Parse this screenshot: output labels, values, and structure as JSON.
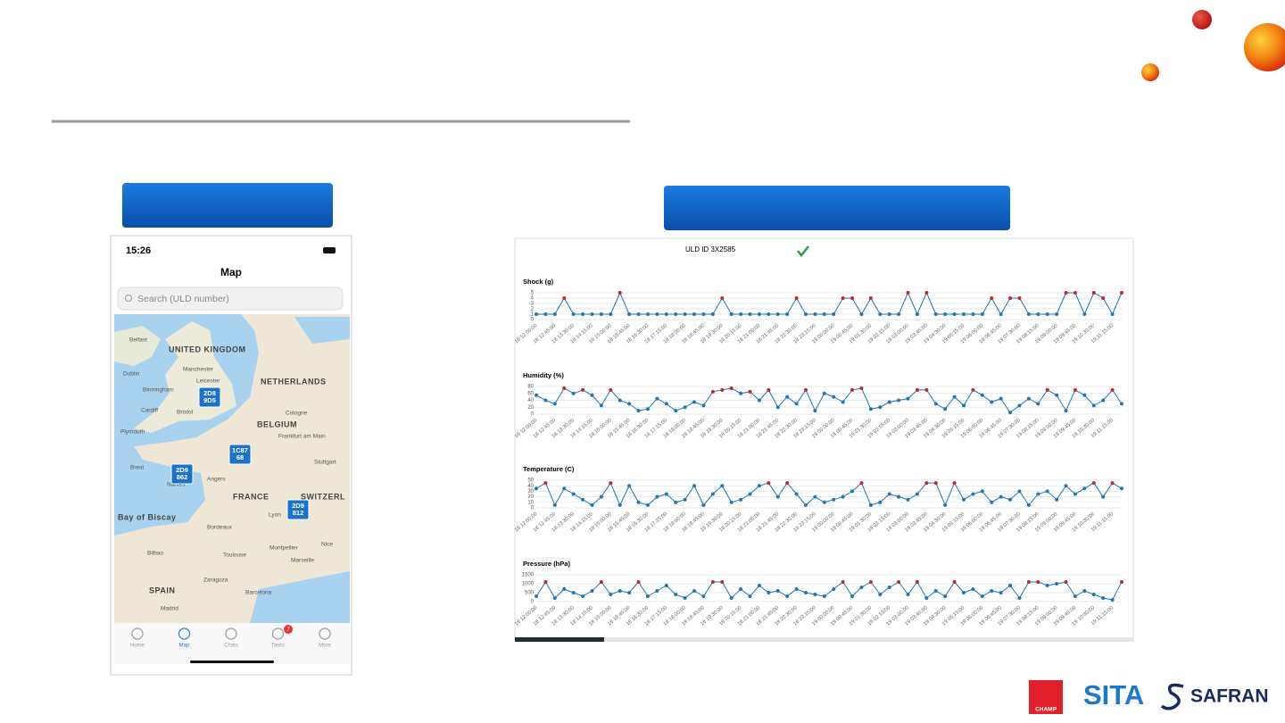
{
  "slide_logos": {
    "champ": "CHAMP",
    "sita": "SITA",
    "safran": "SAFRAN"
  },
  "phone": {
    "time": "15:26",
    "title": "Map",
    "search": "Search (ULD number)",
    "map_labels": [
      "Belfast",
      "UNITED KINGDOM",
      "Dublin",
      "Manchester",
      "Birmingham",
      "Leicester",
      "Cardiff",
      "Bristol",
      "Plymouth",
      "NETHERLANDS",
      "BELGIUM",
      "Cologne",
      "Frankfurt am Main",
      "Stuttgart",
      "FRANCE",
      "Angers",
      "Nantes",
      "Brest",
      "Lyon",
      "Bordeaux",
      "Bay of Biscay",
      "SWITZERL",
      "Montpellier",
      "Toulouse",
      "Marseille",
      "Nice",
      "Bilbao",
      "Zaragoza",
      "Barcelona",
      "SPAIN",
      "Madrid"
    ],
    "markers": [
      [
        "2D8",
        "9D5"
      ],
      [
        "1C87",
        "68"
      ],
      [
        "2D9",
        "862"
      ],
      [
        "2D9",
        "812"
      ]
    ],
    "tabs": [
      "Home",
      "Map",
      "Chats",
      "Tasks",
      "More"
    ],
    "badge": "7"
  },
  "panel_title": "ULD ID 3X2585",
  "chart_data": [
    {
      "type": "line",
      "title": "Shock (g)",
      "categories": [
        "18 12:00:00",
        null,
        "18 12:45:00",
        null,
        "18 13:30:00",
        null,
        "18 14:15:00",
        null,
        "18 15:00:00",
        null,
        "18 15:45:00",
        null,
        "18 16:30:00",
        null,
        "18 17:15:00",
        null,
        "18 18:00:00",
        null,
        "18 18:45:00",
        null,
        "18 19:30:00",
        null,
        "18 20:15:00",
        null,
        "18 21:00:00",
        null,
        "18 21:45:00",
        null,
        "18 22:30:00",
        null,
        "18 23:15:00",
        null,
        "19 00:00:00",
        null,
        "19 00:45:00",
        null,
        "19 01:30:00",
        null,
        "19 02:15:00",
        null,
        "19 03:00:00",
        null,
        "19 03:45:00",
        null,
        "19 04:30:00",
        null,
        "19 05:15:00",
        null,
        "19 06:00:00",
        null,
        "19 06:45:00",
        null,
        "19 07:30:00",
        null,
        "19 08:15:00",
        null,
        "19 09:00:00",
        null,
        "19 09:45:00",
        null,
        "19 10:30:00",
        null,
        "19 11:15:00",
        null
      ],
      "values": [
        1,
        1,
        1,
        4,
        1,
        1,
        1,
        1,
        1,
        5,
        1,
        1,
        1,
        1,
        1,
        1,
        1,
        1,
        1,
        1,
        4,
        1,
        1,
        1,
        1,
        1,
        1,
        1,
        4,
        1,
        1,
        1,
        1,
        4,
        4,
        1,
        4,
        1,
        1,
        1,
        5,
        1,
        5,
        1,
        1,
        1,
        1,
        1,
        1,
        4,
        1,
        4,
        4,
        1,
        1,
        1,
        1,
        5,
        5,
        1,
        5,
        4,
        1,
        5
      ],
      "ylim": [
        0,
        5
      ],
      "yticks": [
        0,
        1,
        2,
        3,
        4,
        5
      ],
      "color": "#1f77b4",
      "alert_color": "#c0282d",
      "alert_threshold": 3,
      "grid": true
    },
    {
      "type": "line",
      "title": "Humidity (%)",
      "categories": [
        "18 12:00:00",
        null,
        "18 12:45:00",
        null,
        "18 13:30:00",
        null,
        "18 14:15:00",
        null,
        "18 15:00:00",
        null,
        "18 15:45:00",
        null,
        "18 16:30:00",
        null,
        "18 17:15:00",
        null,
        "18 18:00:00",
        null,
        "18 18:45:00",
        null,
        "18 19:30:00",
        null,
        "18 20:15:00",
        null,
        "18 21:00:00",
        null,
        "18 21:45:00",
        null,
        "18 22:30:00",
        null,
        "18 23:15:00",
        null,
        "19 00:00:00",
        null,
        "19 00:45:00",
        null,
        "19 01:30:00",
        null,
        "19 02:15:00",
        null,
        "19 03:00:00",
        null,
        "19 03:45:00",
        null,
        "19 04:30:00",
        null,
        "19 05:15:00",
        null,
        "19 06:00:00",
        null,
        "19 06:45:00",
        null,
        "19 07:30:00",
        null,
        "19 08:15:00",
        null,
        "19 09:00:00",
        null,
        "19 09:45:00",
        null,
        "19 10:30:00",
        null,
        "19 11:15:00",
        null
      ],
      "values": [
        55,
        40,
        30,
        75,
        60,
        70,
        55,
        25,
        70,
        40,
        30,
        10,
        15,
        45,
        30,
        10,
        20,
        35,
        25,
        65,
        70,
        75,
        60,
        65,
        40,
        70,
        20,
        50,
        30,
        70,
        10,
        60,
        50,
        35,
        70,
        75,
        15,
        20,
        35,
        40,
        45,
        70,
        70,
        30,
        15,
        50,
        25,
        70,
        55,
        35,
        45,
        5,
        25,
        45,
        30,
        70,
        55,
        10,
        70,
        55,
        25,
        40,
        70,
        30
      ],
      "ylim": [
        0,
        80
      ],
      "yticks": [
        0,
        20,
        40,
        60,
        80
      ],
      "color": "#1f77b4",
      "alert_color": "#c0282d",
      "alert_threshold": 65,
      "grid": true
    },
    {
      "type": "line",
      "title": "Temperature (C)",
      "categories": [
        "18 12:00:00",
        null,
        "18 12:45:00",
        null,
        "18 13:30:00",
        null,
        "18 14:15:00",
        null,
        "18 15:00:00",
        null,
        "18 15:45:00",
        null,
        "18 16:30:00",
        null,
        "18 17:15:00",
        null,
        "18 18:00:00",
        null,
        "18 18:45:00",
        null,
        "18 19:30:00",
        null,
        "18 20:15:00",
        null,
        "18 21:00:00",
        null,
        "18 21:45:00",
        null,
        "18 22:30:00",
        null,
        "18 23:15:00",
        null,
        "19 00:00:00",
        null,
        "19 00:45:00",
        null,
        "19 01:30:00",
        null,
        "19 02:15:00",
        null,
        "19 03:00:00",
        null,
        "19 03:45:00",
        null,
        "19 04:30:00",
        null,
        "19 05:15:00",
        null,
        "19 06:00:00",
        null,
        "19 06:45:00",
        null,
        "19 07:30:00",
        null,
        "19 08:15:00",
        null,
        "19 09:00:00",
        null,
        "19 09:45:00",
        null,
        "19 10:30:00",
        null,
        "19 11:15:00",
        null
      ],
      "values": [
        35,
        45,
        5,
        35,
        25,
        15,
        5,
        20,
        45,
        5,
        40,
        10,
        5,
        20,
        25,
        10,
        15,
        40,
        5,
        25,
        40,
        10,
        15,
        25,
        40,
        45,
        20,
        45,
        25,
        5,
        20,
        10,
        15,
        20,
        30,
        45,
        5,
        10,
        25,
        20,
        15,
        25,
        45,
        45,
        5,
        45,
        15,
        25,
        30,
        10,
        20,
        15,
        30,
        5,
        25,
        30,
        15,
        40,
        25,
        35,
        45,
        20,
        45,
        35
      ],
      "ylim": [
        0,
        50
      ],
      "yticks": [
        0,
        10,
        20,
        30,
        40,
        50
      ],
      "color": "#1f77b4",
      "alert_color": "#c0282d",
      "alert_threshold": 42,
      "grid": true
    },
    {
      "type": "line",
      "title": "Pressure (hPa)",
      "categories": [
        "18 12:00:00",
        null,
        "18 12:45:00",
        null,
        "18 13:30:00",
        null,
        "18 14:15:00",
        null,
        "18 15:00:00",
        null,
        "18 15:45:00",
        null,
        "18 16:30:00",
        null,
        "18 17:15:00",
        null,
        "18 18:00:00",
        null,
        "18 18:45:00",
        null,
        "18 19:30:00",
        null,
        "18 20:15:00",
        null,
        "18 21:00:00",
        null,
        "18 21:45:00",
        null,
        "18 22:30:00",
        null,
        "18 23:15:00",
        null,
        "19 00:00:00",
        null,
        "19 00:45:00",
        null,
        "19 01:30:00",
        null,
        "19 02:15:00",
        null,
        "19 03:00:00",
        null,
        "19 03:45:00",
        null,
        "19 04:30:00",
        null,
        "19 05:15:00",
        null,
        "19 06:00:00",
        null,
        "19 06:45:00",
        null,
        "19 07:30:00",
        null,
        "19 08:15:00",
        null,
        "19 09:00:00",
        null,
        "19 09:45:00",
        null,
        "19 10:30:00",
        null,
        "19 11:15:00",
        null
      ],
      "values": [
        300,
        1100,
        200,
        700,
        500,
        300,
        600,
        1100,
        400,
        600,
        500,
        1100,
        300,
        600,
        900,
        400,
        200,
        600,
        300,
        1100,
        1100,
        200,
        700,
        300,
        900,
        500,
        600,
        300,
        700,
        500,
        400,
        300,
        700,
        1100,
        300,
        800,
        1100,
        400,
        800,
        1100,
        400,
        1100,
        200,
        600,
        300,
        1100,
        500,
        700,
        300,
        600,
        500,
        900,
        200,
        1100,
        1100,
        900,
        1000,
        1100,
        300,
        600,
        400,
        200,
        100,
        1100
      ],
      "ylim": [
        0,
        1500
      ],
      "yticks": [
        0,
        500,
        1000,
        1500
      ],
      "color": "#1f77b4",
      "alert_color": "#c0282d",
      "alert_threshold": 1050,
      "grid": true
    }
  ]
}
